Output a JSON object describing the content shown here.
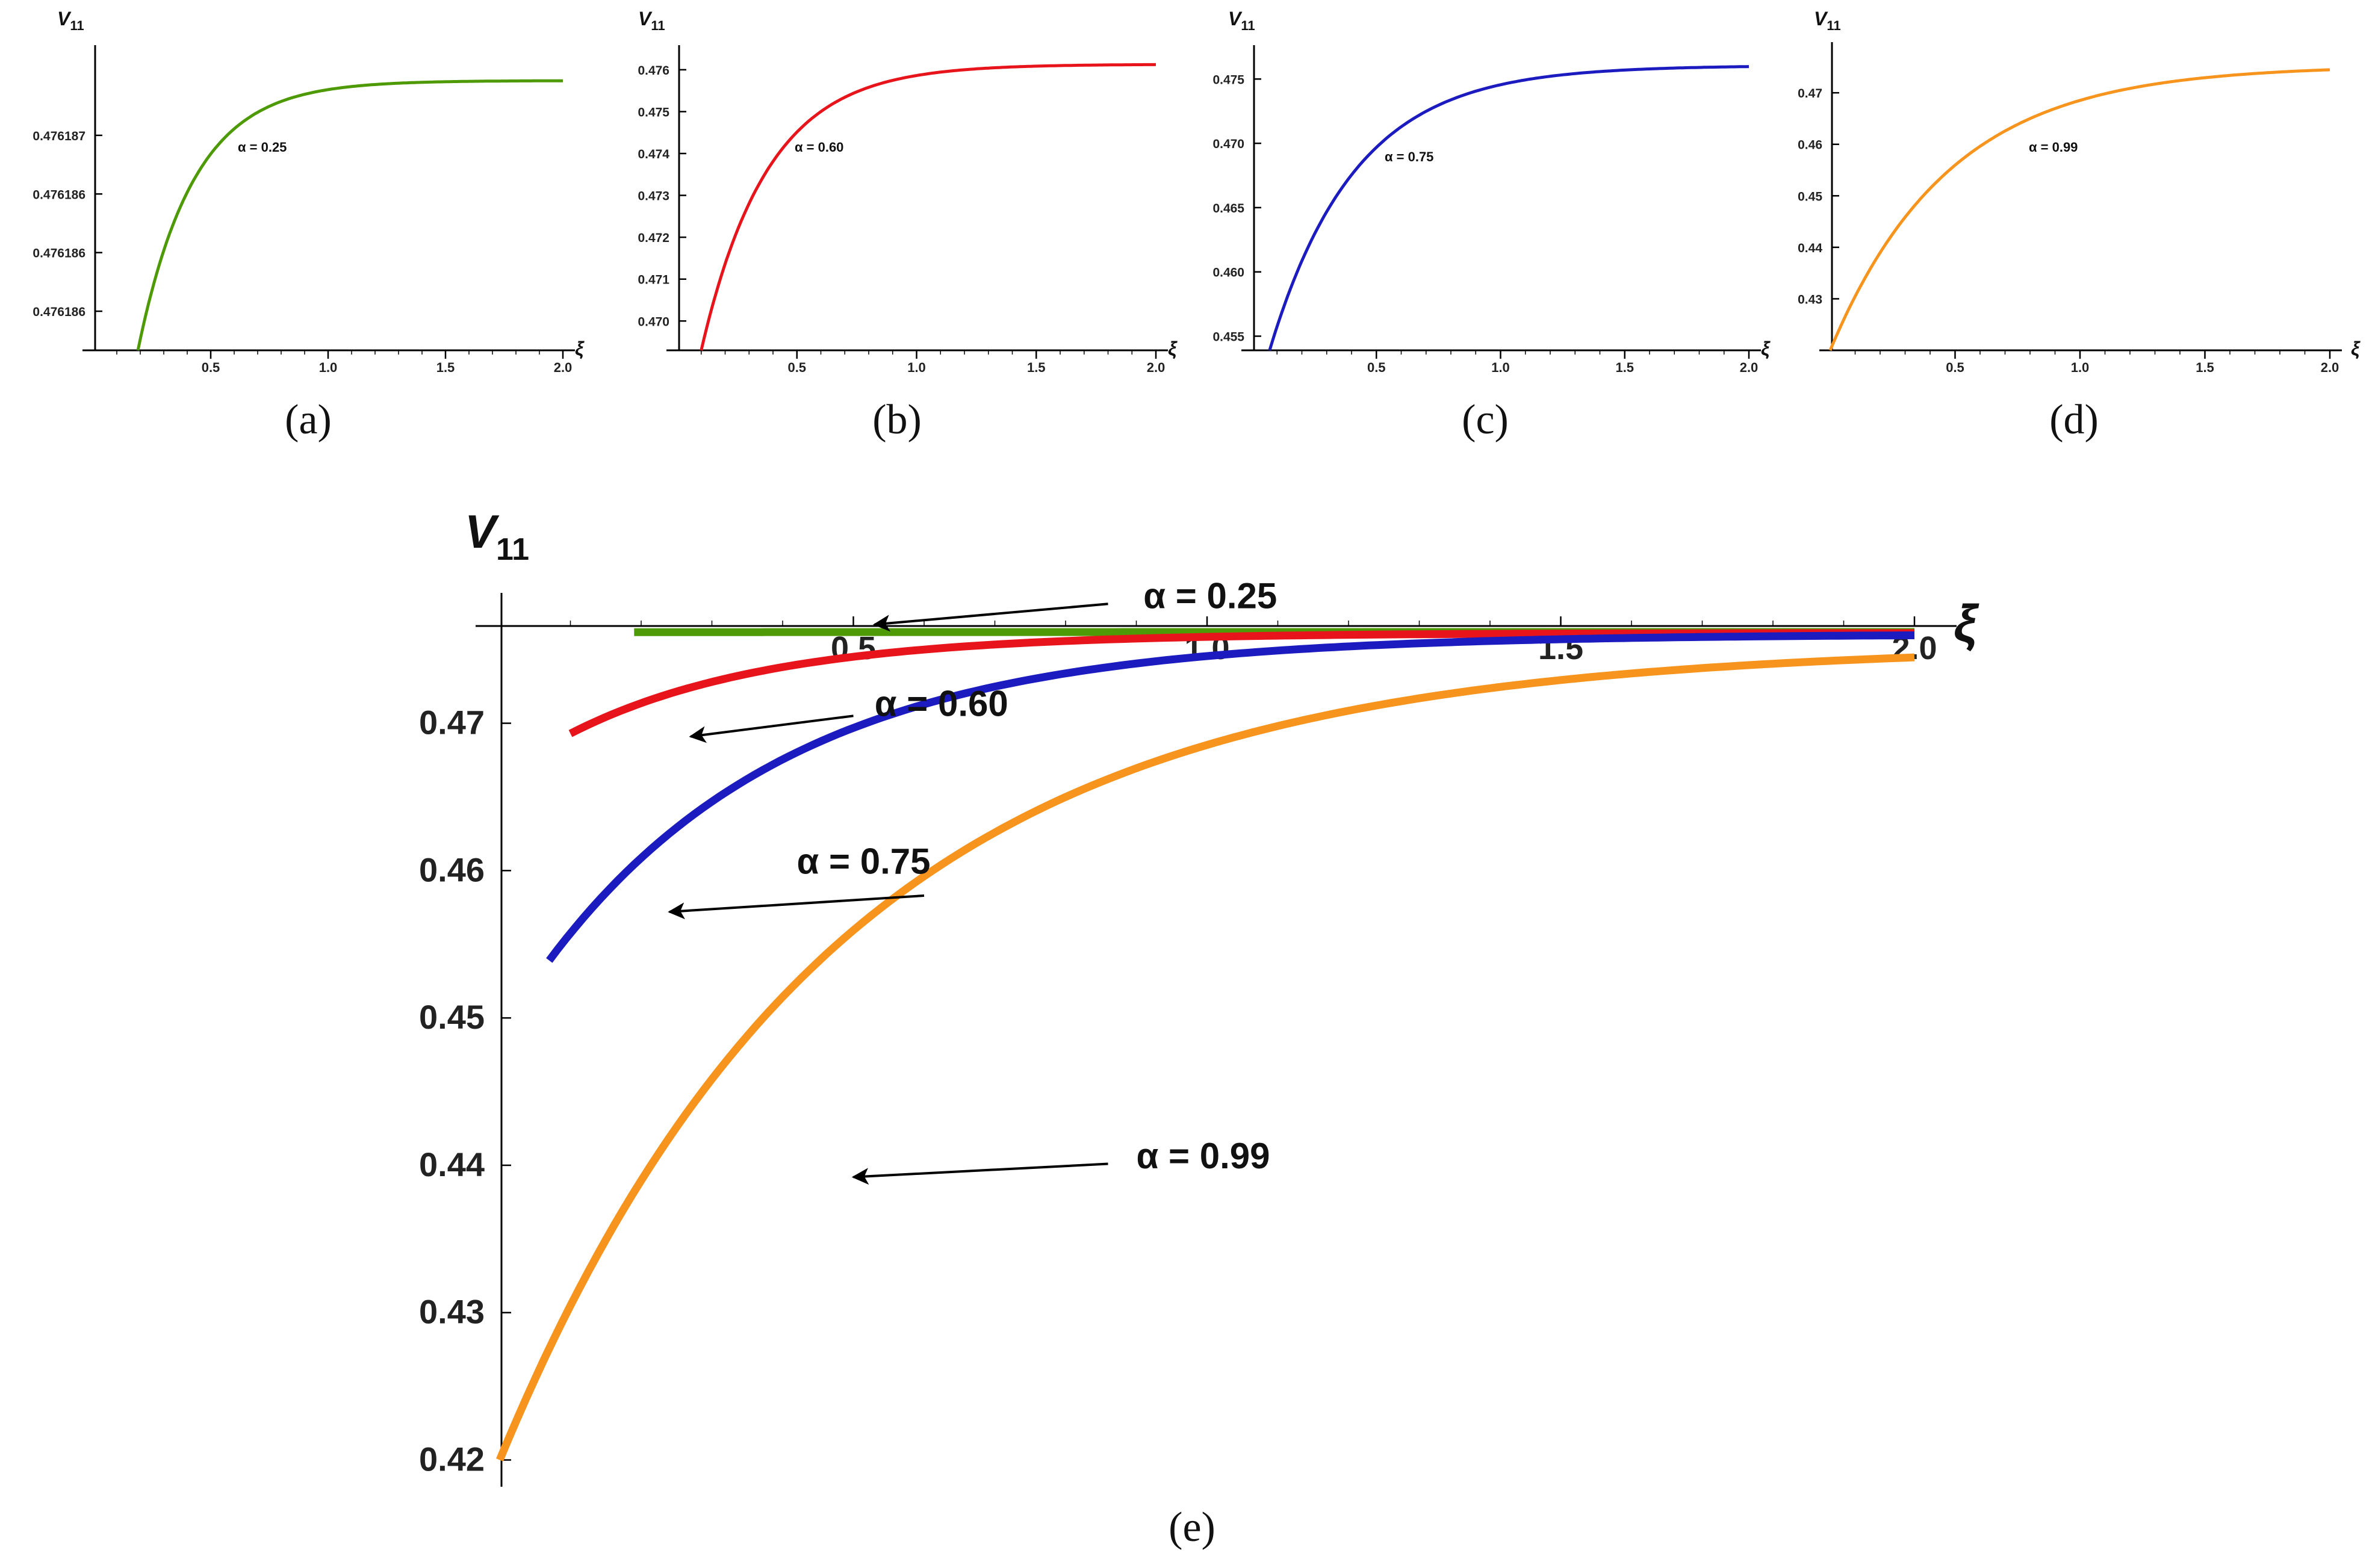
{
  "chart_data": [
    {
      "id": "a",
      "panel_label": "(a)",
      "type": "line",
      "ylabel": "V11",
      "xlabel": "ξ",
      "color": "#4e9a06",
      "alpha_label": "α = 0.25",
      "xlim": [
        0,
        2.0
      ],
      "ylim": [
        0.4761858,
        0.4761873
      ],
      "x_ticks": [
        0.5,
        1.0,
        1.5,
        2.0
      ],
      "x_tick_labels": [
        "0.5",
        "1.0",
        "1.5",
        "2.0"
      ],
      "y_ticks": [
        0.476186,
        0.4761863,
        0.4761866,
        0.4761869
      ],
      "y_tick_labels": [
        "0.476186",
        "0.476186",
        "0.476186",
        "0.476187"
      ],
      "series": [
        {
          "name": "α = 0.25",
          "x0": 0.19,
          "x1": 2.0,
          "y_start": 0.4761858,
          "y_end": 0.47618718,
          "rate": 4.2
        }
      ]
    },
    {
      "id": "b",
      "panel_label": "(b)",
      "type": "line",
      "ylabel": "V11",
      "xlabel": "ξ",
      "color": "#e8141c",
      "alpha_label": "α = 0.60",
      "xlim": [
        0,
        2.0
      ],
      "ylim": [
        0.4693,
        0.4763
      ],
      "x_ticks": [
        0.5,
        1.0,
        1.5,
        2.0
      ],
      "x_tick_labels": [
        "0.5",
        "1.0",
        "1.5",
        "2.0"
      ],
      "y_ticks": [
        0.47,
        0.471,
        0.472,
        0.473,
        0.474,
        0.475,
        0.476
      ],
      "y_tick_labels": [
        "0.470",
        "0.471",
        "0.472",
        "0.473",
        "0.474",
        "0.475",
        "0.476"
      ],
      "series": [
        {
          "name": "α = 0.60",
          "x0": 0.1,
          "x1": 2.0,
          "y_start": 0.4693,
          "y_end": 0.47613,
          "rate": 3.6
        }
      ]
    },
    {
      "id": "c",
      "panel_label": "(c)",
      "type": "line",
      "ylabel": "V11",
      "xlabel": "ξ",
      "color": "#1b1bbf",
      "alpha_label": "α = 0.75",
      "xlim": [
        0,
        2.0
      ],
      "ylim": [
        0.4539,
        0.4767
      ],
      "x_ticks": [
        0.5,
        1.0,
        1.5,
        2.0
      ],
      "x_tick_labels": [
        "0.5",
        "1.0",
        "1.5",
        "2.0"
      ],
      "y_ticks": [
        0.455,
        0.46,
        0.465,
        0.47,
        0.475
      ],
      "y_tick_labels": [
        "0.455",
        "0.460",
        "0.465",
        "0.470",
        "0.475"
      ],
      "series": [
        {
          "name": "α = 0.75",
          "x0": 0.07,
          "x1": 2.0,
          "y_start": 0.4539,
          "y_end": 0.47605,
          "rate": 2.9
        }
      ]
    },
    {
      "id": "d",
      "panel_label": "(d)",
      "type": "line",
      "ylabel": "V11",
      "xlabel": "ξ",
      "color": "#f7941d",
      "alpha_label": "α = 0.99",
      "xlim": [
        0,
        2.0
      ],
      "ylim": [
        0.42,
        0.4775
      ],
      "x_ticks": [
        0.5,
        1.0,
        1.5,
        2.0
      ],
      "x_tick_labels": [
        "0.5",
        "1.0",
        "1.5",
        "2.0"
      ],
      "y_ticks": [
        0.43,
        0.44,
        0.45,
        0.46,
        0.47
      ],
      "y_tick_labels": [
        "0.43",
        "0.44",
        "0.45",
        "0.46",
        "0.47"
      ],
      "series": [
        {
          "name": "α = 0.99",
          "x0": 0.0,
          "x1": 2.0,
          "y_start": 0.42,
          "y_end": 0.4753,
          "rate": 2.1
        }
      ]
    },
    {
      "id": "e",
      "panel_label": "(e)",
      "type": "line",
      "ylabel": "V11",
      "xlabel": "ξ",
      "xlim": [
        0,
        2.0
      ],
      "ylim": [
        0.419,
        0.4766
      ],
      "x_ticks": [
        0.5,
        1.0,
        1.5,
        2.0
      ],
      "x_tick_labels": [
        "0.5",
        "1.0",
        "1.5",
        "2.0"
      ],
      "y_ticks": [
        0.42,
        0.43,
        0.44,
        0.45,
        0.46,
        0.47
      ],
      "y_tick_labels": [
        "0.42",
        "0.43",
        "0.44",
        "0.45",
        "0.46",
        "0.47"
      ],
      "series": [
        {
          "name": "α = 0.25",
          "color": "#4e9a06",
          "x0": 0.19,
          "x1": 2.0,
          "y_start": 0.47618,
          "y_end": 0.47619,
          "rate": 4.2
        },
        {
          "name": "α = 0.60",
          "color": "#e8141c",
          "x0": 0.1,
          "x1": 2.0,
          "y_start": 0.4693,
          "y_end": 0.47613,
          "rate": 3.6
        },
        {
          "name": "α = 0.75",
          "color": "#1b1bbf",
          "x0": 0.07,
          "x1": 2.0,
          "y_start": 0.4539,
          "y_end": 0.47605,
          "rate": 2.9
        },
        {
          "name": "α = 0.99",
          "color": "#f7941d",
          "x0": 0.0,
          "x1": 2.0,
          "y_start": 0.42,
          "y_end": 0.4753,
          "rate": 2.1
        }
      ],
      "annotations": [
        {
          "text": "α = 0.25",
          "text_at": [
            0.91,
            0.4778
          ],
          "arrow_from": [
            0.86,
            0.4781
          ],
          "arrow_to": [
            0.53,
            0.4767
          ]
        },
        {
          "text": "α = 0.60",
          "text_at": [
            0.53,
            0.4705
          ],
          "arrow_from": [
            0.5,
            0.4705
          ],
          "arrow_to": [
            0.27,
            0.4691
          ]
        },
        {
          "text": "α = 0.75",
          "text_at": [
            0.42,
            0.4598
          ],
          "arrow_from": [
            0.6,
            0.4583
          ],
          "arrow_to": [
            0.24,
            0.4572
          ]
        },
        {
          "text": "α = 0.99",
          "text_at": [
            0.9,
            0.4398
          ],
          "arrow_from": [
            0.86,
            0.4401
          ],
          "arrow_to": [
            0.5,
            0.4392
          ]
        }
      ]
    }
  ]
}
